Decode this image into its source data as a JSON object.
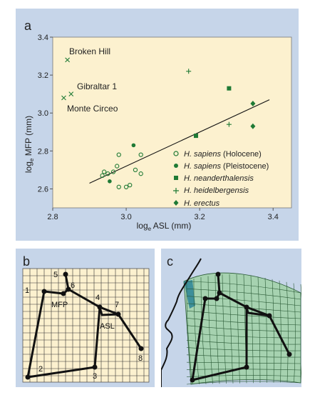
{
  "panel_a": {
    "letter": "a",
    "ylabel_main": "log",
    "ylabel_sub": "e",
    "ylabel_rest": " MFP (mm)",
    "xlabel_main": "log",
    "xlabel_sub": "e",
    "xlabel_rest": " ASL (mm)",
    "annotations": {
      "broken_hill": "Broken Hill",
      "gibraltar": "Gibraltar 1",
      "monte_circeo": "Monte Circeo"
    },
    "legend": {
      "holocene_species": "H. sapiens",
      "holocene_qualifier": " (Holocene)",
      "pleistocene_species": "H. sapiens",
      "pleistocene_qualifier": " (Pleistocene)",
      "neanderthalensis": "H. neanderthalensis",
      "heidelbergensis": "H. heidelbergensis",
      "erectus": "H. erectus"
    }
  },
  "panel_b": {
    "letter": "b",
    "labels": {
      "p1": "1",
      "p2": "2",
      "p3": "3",
      "p4": "4",
      "p5": "5",
      "p6": "6",
      "p7": "7",
      "p8": "8",
      "mfp": "MFP",
      "asl": "ASL"
    }
  },
  "panel_c": {
    "letter": "c"
  },
  "colors": {
    "panel_bg": "#c6d5e9",
    "plot_bg": "#fcf1cf",
    "marker_green": "#1f7a35",
    "mesh_fill": "#a6d2b0",
    "mesh_teal": "#3d8f9a"
  },
  "chart_data": {
    "type": "scatter",
    "xlabel": "loge ASL (mm)",
    "ylabel": "loge MFP (mm)",
    "xlim": [
      2.8,
      3.45
    ],
    "ylim": [
      2.5,
      3.4
    ],
    "xticks": [
      "2.8",
      "3.0",
      "3.2",
      "3.4"
    ],
    "yticks": [
      "2.6",
      "2.8",
      "3.0",
      "3.2",
      "3.4"
    ],
    "regression_line": {
      "x": [
        2.9,
        3.39
      ],
      "y": [
        2.63,
        3.07
      ]
    },
    "series": [
      {
        "name": "H. sapiens (Holocene)",
        "marker": "open-circle",
        "x": [
          2.935,
          2.94,
          2.95,
          2.965,
          2.975,
          2.98,
          2.98,
          3.0,
          3.01,
          3.025,
          3.04,
          3.04
        ],
        "y": [
          2.67,
          2.69,
          2.68,
          2.69,
          2.72,
          2.78,
          2.61,
          2.61,
          2.62,
          2.7,
          2.68,
          2.78
        ]
      },
      {
        "name": "H. sapiens (Pleistocene)",
        "marker": "filled-circle",
        "x": [
          2.955,
          3.02
        ],
        "y": [
          2.64,
          2.83
        ]
      },
      {
        "name": "H. neanderthalensis",
        "marker": "square",
        "x": [
          3.19,
          3.28
        ],
        "y": [
          2.88,
          3.13
        ]
      },
      {
        "name": "H. heidelbergensis",
        "marker": "plus",
        "x": [
          3.17,
          3.28
        ],
        "y": [
          3.22,
          2.94
        ]
      },
      {
        "name": "H. erectus",
        "marker": "diamond",
        "x": [
          3.345,
          3.345
        ],
        "y": [
          3.05,
          2.93
        ]
      },
      {
        "name": "fossils",
        "marker": "x",
        "x": [
          2.84,
          2.83,
          2.85
        ],
        "y": [
          3.28,
          3.08,
          3.1
        ]
      }
    ]
  }
}
